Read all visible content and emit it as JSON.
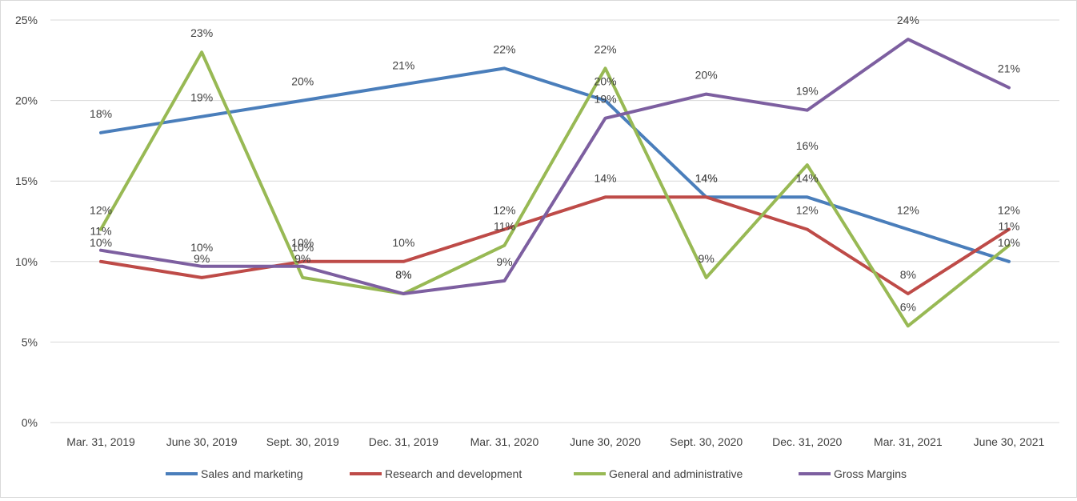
{
  "chart_data": {
    "type": "line",
    "categories": [
      "Mar. 31, 2019",
      "June 30, 2019",
      "Sept. 30, 2019",
      "Dec. 31, 2019",
      "Mar. 31, 2020",
      "June 30, 2020",
      "Sept. 30, 2020",
      "Dec. 31, 2020",
      "Mar. 31, 2021",
      "June 30, 2021"
    ],
    "y_ticks": [
      "0%",
      "5%",
      "10%",
      "15%",
      "20%",
      "25%"
    ],
    "ylim": [
      0,
      25
    ],
    "grid": true,
    "legend_position": "bottom",
    "series": [
      {
        "name": "Sales and marketing",
        "color": "#4a7ebb",
        "values": [
          18,
          19,
          20,
          21,
          22,
          20,
          14,
          14,
          12,
          10
        ],
        "labels": [
          "18%",
          "19%",
          "20%",
          "21%",
          "22%",
          "20%",
          "14%",
          "14%",
          "12%",
          "10%"
        ]
      },
      {
        "name": "Research and development",
        "color": "#be4b48",
        "values": [
          10,
          9,
          10,
          10,
          12,
          14,
          14,
          12,
          8,
          12
        ],
        "labels": [
          "10%",
          "9%",
          "10%",
          "10%",
          "12%",
          "14%",
          "14%",
          "12%",
          "8%",
          "12%"
        ]
      },
      {
        "name": "General and administrative",
        "color": "#98b954",
        "values": [
          12,
          23,
          9,
          8,
          11,
          22,
          9,
          16,
          6,
          11
        ],
        "labels": [
          "12%",
          "23%",
          "9%",
          "8%",
          "11%",
          "22%",
          "9%",
          "16%",
          "6%",
          "11%"
        ]
      },
      {
        "name": "Gross Margins",
        "color": "#7d5fa0",
        "values": [
          10.7,
          9.7,
          9.7,
          8,
          8.8,
          18.9,
          20.4,
          19.4,
          23.8,
          20.8
        ],
        "labels": [
          "11%",
          "10%",
          "10%",
          "8%",
          "9%",
          "19%",
          "20%",
          "19%",
          "24%",
          "21%"
        ]
      }
    ]
  }
}
